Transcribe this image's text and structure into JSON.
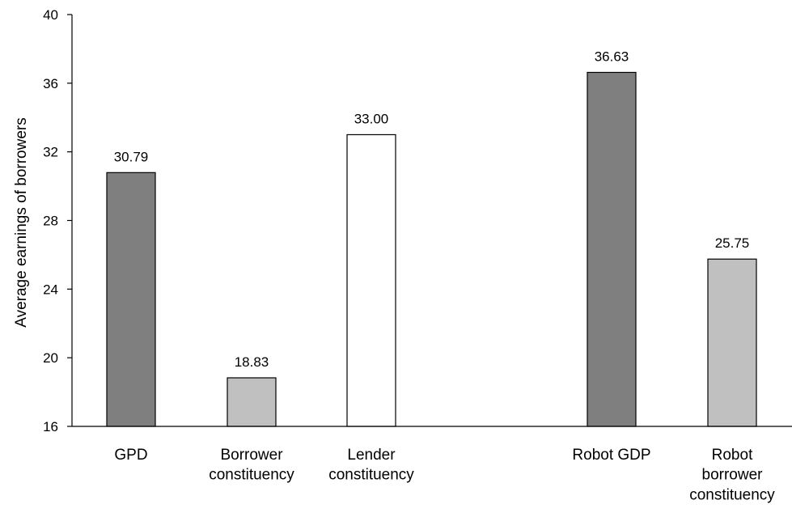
{
  "chart_data": {
    "type": "bar",
    "title": "",
    "xlabel": "",
    "ylabel": "Average earnings of borrowers",
    "ylim": [
      16,
      40
    ],
    "yticks": [
      16,
      20,
      24,
      28,
      32,
      36,
      40
    ],
    "grid": false,
    "legend": "none",
    "categories": [
      "GPD",
      "Borrower constituency",
      "Lender constituency",
      "Robot GDP",
      "Robot borrower constituency"
    ],
    "category_lines": [
      [
        "GPD"
      ],
      [
        "Borrower",
        "constituency"
      ],
      [
        "Lender",
        "constituency"
      ],
      [
        "Robot GDP"
      ],
      [
        "Robot",
        "borrower",
        "constituency"
      ]
    ],
    "values": [
      30.79,
      18.83,
      33.0,
      36.63,
      25.75
    ],
    "value_labels": [
      "30.79",
      "18.83",
      "33.00",
      "36.63",
      "25.75"
    ],
    "colors": [
      "#7f7f7f",
      "#c0c0c0",
      "#ffffff",
      "#7f7f7f",
      "#c0c0c0"
    ]
  }
}
